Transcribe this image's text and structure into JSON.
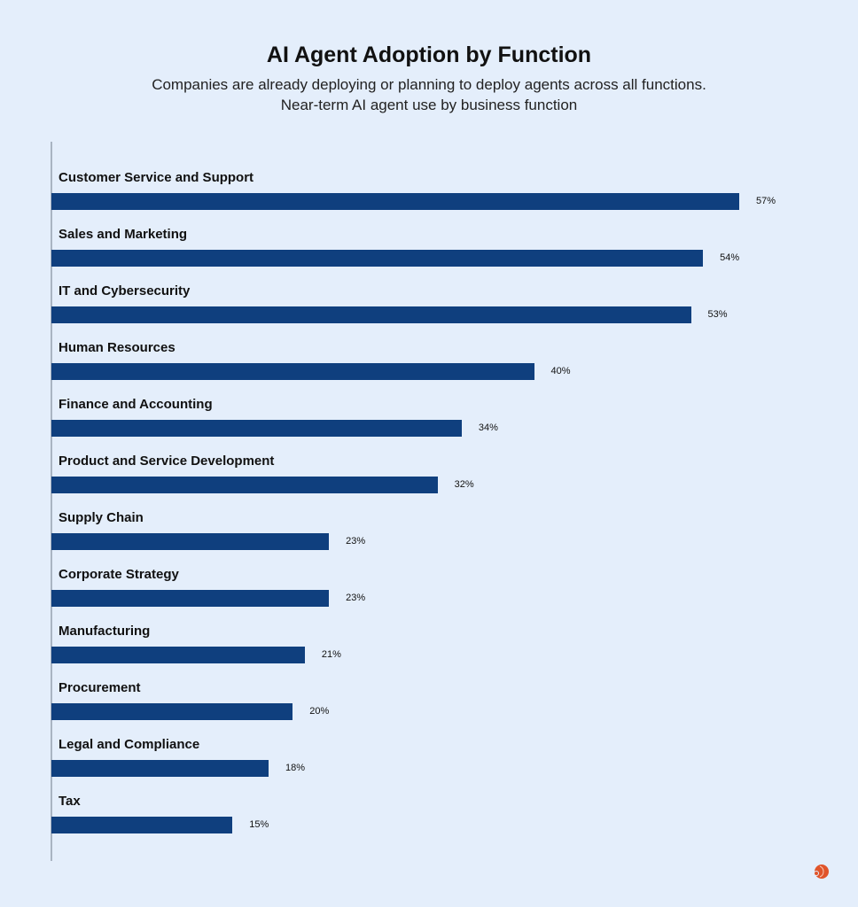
{
  "chart_data": {
    "type": "bar",
    "orientation": "horizontal",
    "title": "AI Agent Adoption by Function",
    "subtitle": [
      "Companies are already deploying or planning to deploy agents across all functions.",
      "Near-term AI agent use by business function"
    ],
    "categories": [
      "Customer Service and Support",
      "Sales and Marketing",
      "IT and Cybersecurity",
      "Human Resources",
      "Finance and Accounting",
      "Product and Service Development",
      "Supply Chain",
      "Corporate Strategy",
      "Manufacturing",
      "Procurement",
      "Legal and Compliance",
      "Tax"
    ],
    "values": [
      57,
      54,
      53,
      40,
      34,
      32,
      23,
      23,
      21,
      20,
      18,
      15
    ],
    "value_labels": [
      "57%",
      "54%",
      "53%",
      "40%",
      "34%",
      "32%",
      "23%",
      "23%",
      "21%",
      "20%",
      "18%",
      "15%"
    ],
    "unit": "%",
    "xlim": [
      0,
      57
    ],
    "grid": false,
    "bar_color": "#0f3f7e",
    "background": "#e4eefb",
    "logo_color": "#e0542a"
  }
}
